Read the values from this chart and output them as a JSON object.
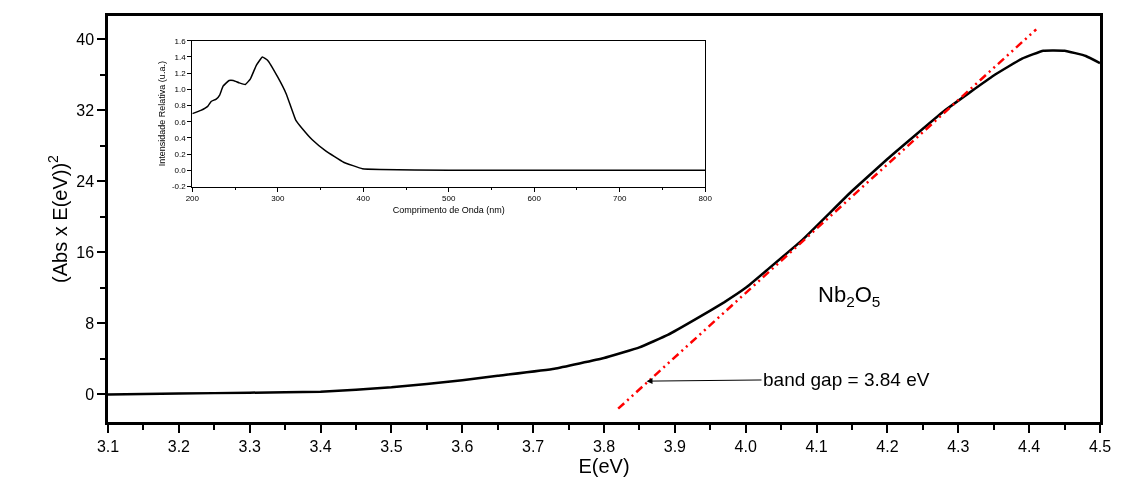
{
  "chart_data": [
    {
      "type": "line",
      "xlabel": "E(eV)",
      "ylabel": "(Abs x E(eV))$^{2}$",
      "annotations": [
        "Nb$_{2}$O$_{5}$",
        {
          "text": "band gap = 3.84 eV",
          "x": 3.86,
          "y": 1.5
        }
      ],
      "xlim": [
        3.1,
        4.5
      ],
      "ylim": [
        -3.1,
        42.6
      ],
      "xticks": [
        3.1,
        3.2,
        3.3,
        3.4,
        3.5,
        3.6,
        3.7,
        3.8,
        3.9,
        {
          "value": 4,
          "label": "4.0"
        },
        4.1,
        4.2,
        4.3,
        4.4,
        4.5,
        {
          "value": 3.15,
          "label": null
        },
        {
          "value": 3.25,
          "label": null
        },
        {
          "value": 3.35,
          "label": null
        },
        {
          "value": 3.45,
          "label": null
        },
        {
          "value": 3.55,
          "label": null
        },
        {
          "value": 3.65,
          "label": null
        },
        {
          "value": 3.75,
          "label": null
        },
        {
          "value": 3.85,
          "label": null
        },
        {
          "value": 3.95,
          "label": null
        },
        {
          "value": 4.05,
          "label": null
        },
        {
          "value": 4.15,
          "label": null
        },
        {
          "value": 4.25,
          "label": null
        },
        {
          "value": 4.35,
          "label": null
        },
        {
          "value": 4.45,
          "label": null
        }
      ],
      "yticks": [
        0,
        8,
        16,
        24,
        32,
        40,
        {
          "value": 4,
          "label": null
        },
        {
          "value": 12,
          "label": null
        },
        {
          "value": 20,
          "label": null
        },
        {
          "value": 28,
          "label": null
        },
        {
          "value": 36,
          "label": null
        }
      ],
      "series": [
        {
          "color": "#000000",
          "line_style": "solid",
          "x": [
            3.1,
            3.2,
            3.3,
            3.4,
            3.5,
            3.6,
            3.65,
            3.73,
            3.8,
            3.85,
            3.89,
            3.93,
            3.97,
            4.0,
            4.03,
            4.08,
            4.15,
            4.2,
            4.28,
            4.35,
            4.39,
            4.42,
            4.45,
            4.48,
            4.5
          ],
          "values": [
            0,
            0.1,
            0.2,
            0.3,
            0.8,
            1.6,
            2.1,
            2.9,
            4.1,
            5.3,
            6.7,
            8.5,
            10.4,
            12.0,
            14.0,
            17.4,
            22.9,
            26.5,
            31.9,
            35.9,
            37.8,
            38.7,
            38.7,
            38.1,
            37.3
          ]
        },
        {
          "type": "line",
          "color": "#ff0000",
          "line_style": "dashed",
          "x": [
            3.82,
            4.41
          ],
          "values": [
            -1.6,
            41.1
          ]
        }
      ]
    },
    {
      "type": "line",
      "xlabel": "Comprimento de Onda (nm)",
      "ylabel": "Intensidade Relativa (u.a.)",
      "xlim": [
        200,
        800
      ],
      "ylim": [
        -0.2,
        1.6
      ],
      "xticks": [
        200,
        300,
        400,
        500,
        600,
        700,
        800,
        {
          "value": 250,
          "label": null
        },
        {
          "value": 350,
          "label": null
        },
        {
          "value": 450,
          "label": null
        },
        {
          "value": 550,
          "label": null
        },
        {
          "value": 650,
          "label": null
        },
        {
          "value": 750,
          "label": null
        }
      ],
      "yticks": [
        {
          "value": -0.2,
          "label": "-0.2"
        },
        {
          "value": 0,
          "label": "0.0"
        },
        0.2,
        0.4,
        0.6,
        0.8,
        {
          "value": 1,
          "label": "1.0"
        },
        1.2,
        1.4,
        1.6
      ],
      "series": [
        {
          "color": "#000000",
          "line_style": "solid",
          "x": [
            200,
            210,
            218,
            222,
            228,
            232,
            236,
            243,
            248,
            255,
            262,
            268,
            275,
            282,
            288,
            300,
            310,
            321,
            329,
            340,
            356,
            377,
            399,
            420,
            500,
            600,
            800
          ],
          "values": [
            0.7,
            0.74,
            0.79,
            0.85,
            0.88,
            0.93,
            1.04,
            1.11,
            1.11,
            1.08,
            1.06,
            1.13,
            1.3,
            1.4,
            1.36,
            1.15,
            0.94,
            0.62,
            0.51,
            0.38,
            0.24,
            0.1,
            0.02,
            0.01,
            0.0,
            0.0,
            0.0
          ]
        }
      ]
    }
  ]
}
